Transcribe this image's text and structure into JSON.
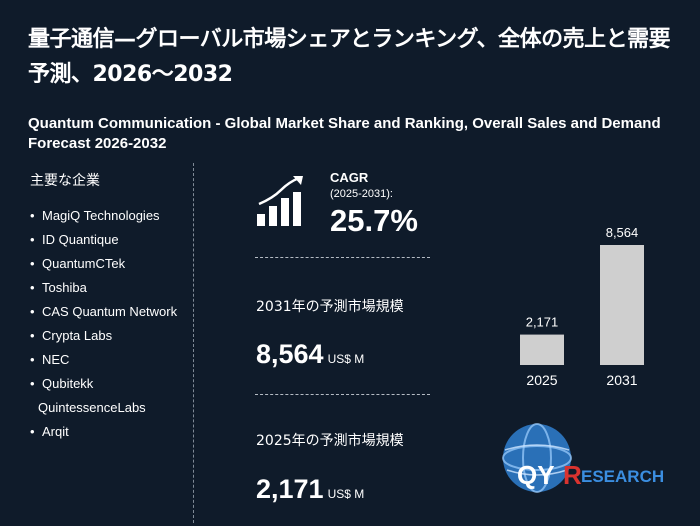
{
  "title_jp": "量子通信—グローバル市場シェアとランキング、全体の売上と需要予測、2026～2032",
  "title_en": "Quantum Communication - Global Market Share and Ranking, Overall Sales and Demand Forecast 2026-2032",
  "companies": {
    "heading": "主要な企業",
    "items": [
      {
        "label": "MagiQ Technologies",
        "bullet": true
      },
      {
        "label": "ID Quantique",
        "bullet": true
      },
      {
        "label": "QuantumCTek",
        "bullet": true
      },
      {
        "label": "Toshiba",
        "bullet": true
      },
      {
        "label": "CAS Quantum Network",
        "bullet": true
      },
      {
        "label": "Crypta Labs",
        "bullet": true
      },
      {
        "label": "NEC",
        "bullet": true
      },
      {
        "label": "Qubitekk",
        "bullet": true
      },
      {
        "label": "QuintessenceLabs",
        "bullet": false
      },
      {
        "label": "Arqit",
        "bullet": true
      }
    ]
  },
  "cagr": {
    "label": "CAGR",
    "range": "(2025-2031):",
    "value": "25.7%"
  },
  "forecast_2031": {
    "label": "2031年の予測市場規模",
    "value": "8,564",
    "unit": "US$ M"
  },
  "forecast_2025": {
    "label": "2025年の予測市場規模",
    "value": "2,171",
    "unit": "US$ M"
  },
  "chart_data": {
    "type": "bar",
    "categories": [
      "2025",
      "2031"
    ],
    "values": [
      2171,
      8564
    ],
    "value_labels": [
      "2,171",
      "8,564"
    ],
    "title": "",
    "xlabel": "",
    "ylabel": "",
    "ylim": [
      0,
      8564
    ],
    "grid": false,
    "bar_color": "#cfcfcf"
  },
  "logo": {
    "letters_q": "QY",
    "letters_r": "R",
    "rest": "ESEARCH"
  },
  "colors": {
    "background": "#0f1b2a",
    "text": "#ffffff",
    "bar": "#cfcfcf",
    "logo_blue": "#2f7fd0",
    "logo_red": "#d9332f"
  }
}
